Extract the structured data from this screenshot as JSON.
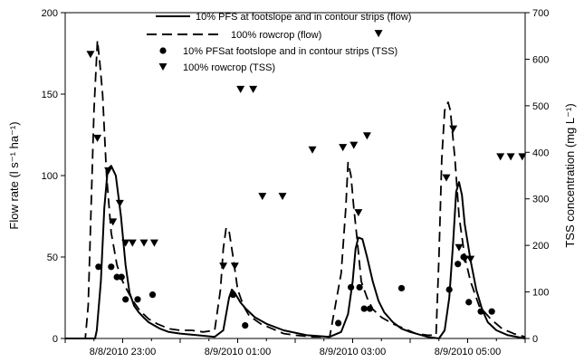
{
  "chart_data": {
    "type": "line",
    "title": "",
    "xlabel": "",
    "ylabel": "Flow rate (l s⁻¹ ha⁻¹)",
    "y2label": "TSS concentration (mg L⁻¹)",
    "x_unit": "hours from 8/8/2010 22:00",
    "xlim": [
      0,
      8
    ],
    "ylim": [
      0,
      200
    ],
    "y2lim": [
      0,
      700
    ],
    "xticks": [
      {
        "x": 1,
        "label": "8/8/2010 23:00"
      },
      {
        "x": 3,
        "label": "8/9/2010 01:00"
      },
      {
        "x": 5,
        "label": "8/9/2010 03:00"
      },
      {
        "x": 7,
        "label": "8/9/2010 05:00"
      }
    ],
    "yticks": [
      "0",
      "50",
      "100",
      "150",
      "200"
    ],
    "y2ticks": [
      "0",
      "100",
      "200",
      "300",
      "400",
      "500",
      "600",
      "700"
    ],
    "legend_position": "top-center",
    "series": [
      {
        "name": "10% PFS at footslope and in contour strips (flow)",
        "axis": "left",
        "style": "solid",
        "x": [
          0,
          0.52,
          0.55,
          0.62,
          0.68,
          0.74,
          0.8,
          0.88,
          0.97,
          1.05,
          1.12,
          1.2,
          1.28,
          1.36,
          1.45,
          1.55,
          1.65,
          1.8,
          2.0,
          2.3,
          2.6,
          2.75,
          2.8,
          2.85,
          2.9,
          2.95,
          3.05,
          3.15,
          3.3,
          3.5,
          3.8,
          4.2,
          4.6,
          4.8,
          4.92,
          5.0,
          5.05,
          5.1,
          5.17,
          5.25,
          5.35,
          5.45,
          5.55,
          5.7,
          5.85,
          6.0,
          6.3,
          6.5,
          6.6,
          6.68,
          6.75,
          6.8,
          6.85,
          6.9,
          6.95,
          7.05,
          7.15,
          7.25,
          7.35,
          7.5,
          7.7,
          8.0
        ],
        "y": [
          0,
          0,
          5,
          35,
          80,
          104,
          106,
          100,
          75,
          45,
          28,
          20,
          16,
          13,
          10,
          8,
          6,
          4,
          3,
          2,
          1,
          5,
          15,
          25,
          30,
          28,
          22,
          18,
          13,
          9,
          5,
          2,
          1,
          4,
          15,
          35,
          55,
          62,
          61,
          50,
          35,
          23,
          16,
          10,
          6,
          4,
          1,
          0,
          5,
          25,
          60,
          90,
          96,
          88,
          70,
          48,
          30,
          18,
          10,
          5,
          2,
          0
        ]
      },
      {
        "name": "100% rowcrop (flow)",
        "axis": "left",
        "style": "dashed",
        "x": [
          0,
          0.35,
          0.4,
          0.45,
          0.5,
          0.56,
          0.6,
          0.65,
          0.72,
          0.8,
          0.9,
          1.0,
          1.1,
          1.2,
          1.3,
          1.45,
          1.6,
          1.8,
          2.0,
          2.1,
          2.2,
          2.4,
          2.6,
          2.7,
          2.75,
          2.8,
          2.85,
          2.92,
          3.0,
          3.1,
          3.2,
          3.4,
          3.6,
          3.8,
          4.0,
          4.3,
          4.6,
          4.8,
          4.88,
          4.92,
          4.97,
          5.02,
          5.08,
          5.15,
          5.25,
          5.35,
          5.5,
          5.7,
          5.9,
          6.1,
          6.3,
          6.45,
          6.5,
          6.55,
          6.6,
          6.66,
          6.7,
          6.78,
          6.85,
          6.95,
          7.05,
          7.2,
          7.4,
          7.6,
          7.8,
          8.0
        ],
        "y": [
          0,
          0,
          20,
          80,
          140,
          183,
          170,
          150,
          100,
          65,
          45,
          35,
          28,
          22,
          17,
          12,
          9,
          6,
          5,
          5,
          5,
          4,
          5,
          30,
          55,
          68,
          66,
          50,
          30,
          20,
          14,
          9,
          6,
          3,
          2,
          1,
          1,
          40,
          80,
          108,
          100,
          80,
          60,
          35,
          25,
          18,
          13,
          9,
          6,
          3,
          2,
          2,
          50,
          110,
          140,
          145,
          140,
          110,
          75,
          50,
          35,
          20,
          12,
          6,
          3,
          1
        ]
      },
      {
        "name": "10% PFSat footslope and  in contour strips (TSS)",
        "axis": "right",
        "style": "circle",
        "x": [
          0.58,
          0.8,
          0.9,
          0.98,
          1.05,
          1.26,
          1.52,
          2.92,
          3.13,
          4.75,
          4.97,
          5.12,
          5.2,
          5.3,
          5.85,
          6.68,
          6.83,
          6.93,
          7.02,
          7.23,
          7.42
        ],
        "y": [
          154,
          154,
          132,
          132,
          84,
          84,
          94,
          94,
          28,
          33,
          110,
          110,
          64,
          64,
          108,
          105,
          160,
          175,
          78,
          58,
          58
        ]
      },
      {
        "name": "100% rowcrop (TSS)",
        "axis": "right",
        "style": "triangle",
        "x": [
          0.44,
          0.56,
          0.75,
          0.83,
          0.95,
          1.05,
          1.17,
          1.37,
          1.55,
          2.75,
          2.95,
          3.05,
          3.27,
          3.43,
          3.78,
          4.3,
          4.83,
          5.02,
          5.1,
          5.25,
          5.45,
          6.63,
          6.75,
          6.85,
          6.95,
          7.05,
          7.57,
          7.75,
          7.95
        ],
        "y": [
          610,
          430,
          360,
          250,
          290,
          205,
          205,
          205,
          205,
          155,
          155,
          535,
          535,
          305,
          305,
          405,
          410,
          415,
          270,
          435,
          655,
          345,
          450,
          195,
          170,
          170,
          390,
          390,
          390
        ]
      }
    ]
  }
}
